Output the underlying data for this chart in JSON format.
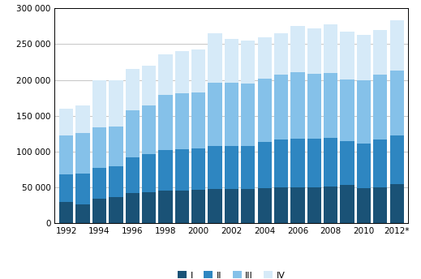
{
  "years": [
    1992,
    1993,
    1994,
    1995,
    1996,
    1997,
    1998,
    1999,
    2000,
    2001,
    2002,
    2003,
    2004,
    2005,
    2006,
    2007,
    2008,
    2009,
    2010,
    2011,
    2012
  ],
  "q1": [
    30000,
    26000,
    34000,
    36000,
    42000,
    43000,
    46000,
    46000,
    47000,
    48000,
    48000,
    48000,
    49000,
    50000,
    50000,
    50000,
    51000,
    54000,
    49000,
    50000,
    55000
  ],
  "q2": [
    38000,
    43000,
    43000,
    44000,
    50000,
    53000,
    56000,
    57000,
    57000,
    60000,
    60000,
    60000,
    65000,
    67000,
    68000,
    68000,
    68000,
    61000,
    62000,
    67000,
    67000
  ],
  "q3": [
    54000,
    57000,
    57000,
    55000,
    66000,
    68000,
    77000,
    78000,
    79000,
    88000,
    88000,
    87000,
    88000,
    90000,
    93000,
    91000,
    91000,
    86000,
    89000,
    91000,
    91000
  ],
  "q4": [
    38000,
    39000,
    66000,
    65000,
    57000,
    56000,
    57000,
    59000,
    60000,
    69000,
    61000,
    60000,
    58000,
    58000,
    64000,
    63000,
    68000,
    67000,
    63000,
    62000,
    70000
  ],
  "colors": [
    "#1a5276",
    "#2e86c1",
    "#85c1e9",
    "#d6eaf8"
  ],
  "yticks": [
    0,
    50000,
    100000,
    150000,
    200000,
    250000,
    300000
  ],
  "xtick_labels": [
    "1992",
    "1994",
    "1996",
    "1998",
    "2000",
    "2002",
    "2004",
    "2006",
    "2008",
    "2010",
    "2012*"
  ],
  "xtick_positions": [
    1992,
    1994,
    1996,
    1998,
    2000,
    2002,
    2004,
    2006,
    2008,
    2010,
    2012
  ],
  "legend_labels": [
    "I",
    "II",
    "III",
    "IV"
  ],
  "bar_width": 0.85,
  "background_color": "#ffffff",
  "grid_color": "#bbbbbb"
}
